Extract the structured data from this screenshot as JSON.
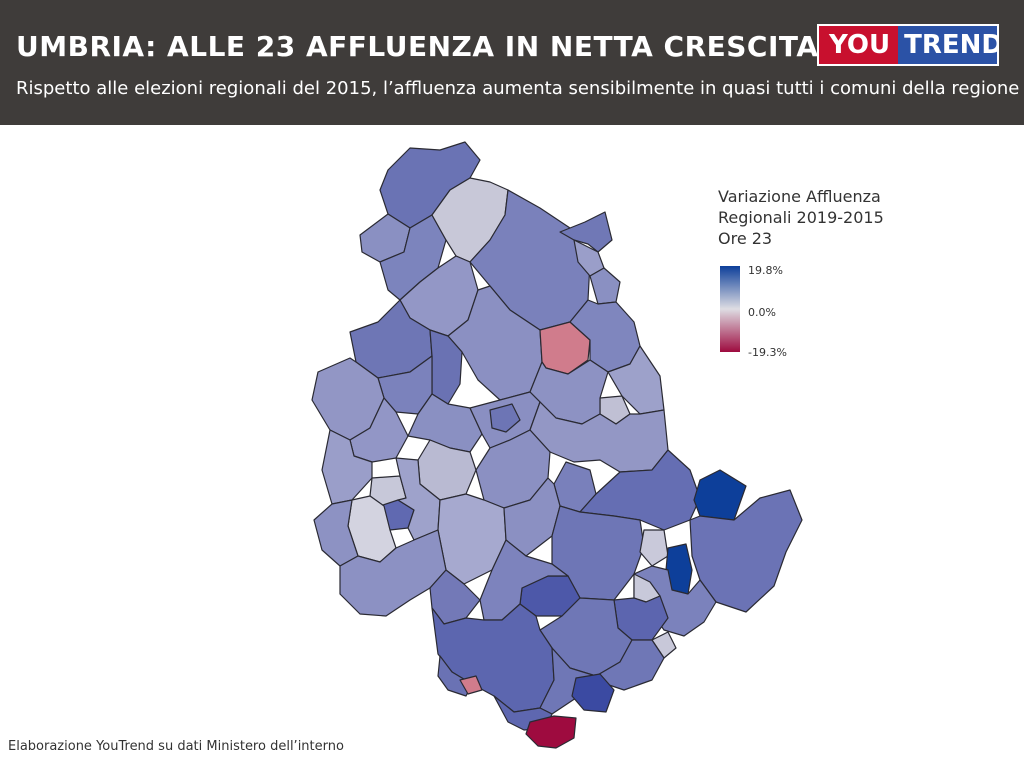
{
  "header": {
    "title": "UMBRIA: ALLE 23 AFFLUENZA IN NETTA CRESCITA",
    "subtitle": "Rispetto alle elezioni regionali del 2015, l’affluenza aumenta sensibilmente in quasi tutti i comuni della regione",
    "logo_you": "YOU",
    "logo_trend": "TREND"
  },
  "legend": {
    "title_lines": [
      "Variazione Affluenza",
      "Regionali 2019-2015",
      "Ore 23"
    ],
    "max_label": "19.8%",
    "mid_label": "0.0%",
    "min_label": "-19.3%",
    "scale": {
      "min": -19.3,
      "mid": 0.0,
      "max": 19.8
    },
    "colors": {
      "high": "#0d3f9a",
      "mid": "#dedde3",
      "low": "#9e0b3f"
    }
  },
  "colors": {
    "header_bg": "#3f3c3a",
    "border": "#2a2a33",
    "logo_red": "#c8102e",
    "logo_blue": "#2b52a6"
  },
  "source": "Elaborazione YouTrend su dati Ministero dell’interno"
}
